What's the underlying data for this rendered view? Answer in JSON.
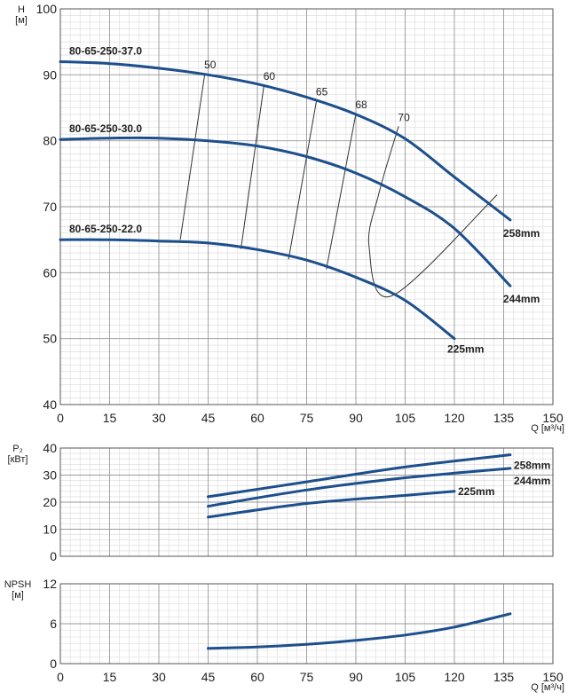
{
  "chart_data": [
    {
      "name": "head",
      "type": "line",
      "ylabel": [
        "H",
        "[м]"
      ],
      "xlabel": "Q [м³/ч]",
      "xlim": [
        0,
        150
      ],
      "ylim": [
        40,
        100
      ],
      "xticks": [
        0,
        15,
        30,
        45,
        60,
        75,
        90,
        105,
        120,
        135,
        150
      ],
      "yticks": [
        40,
        50,
        60,
        70,
        80,
        90,
        100
      ],
      "grid": true,
      "series": [
        {
          "name": "80-65-250-37.0",
          "end_label": "258mm",
          "color": "#1c4f8c",
          "x": [
            0,
            15,
            30,
            45,
            60,
            75,
            90,
            105,
            120,
            137
          ],
          "y": [
            92,
            91.7,
            91,
            90,
            88.6,
            86.6,
            84,
            80.3,
            74.5,
            68
          ]
        },
        {
          "name": "80-65-250-30.0",
          "end_label": "244mm",
          "color": "#1c4f8c",
          "x": [
            0,
            15,
            30,
            45,
            60,
            75,
            90,
            105,
            120,
            137
          ],
          "y": [
            80.2,
            80.4,
            80.4,
            80,
            79.2,
            77.6,
            75.1,
            71.5,
            66.7,
            58
          ]
        },
        {
          "name": "80-65-250-22.0",
          "end_label": "225mm",
          "color": "#1c4f8c",
          "x": [
            0,
            15,
            30,
            45,
            60,
            75,
            90,
            105,
            120
          ],
          "y": [
            65,
            65,
            64.8,
            64.5,
            63.5,
            61.9,
            59.3,
            55.8,
            50
          ]
        }
      ],
      "efficiency_lines": [
        {
          "label": "50",
          "x": [
            44,
            36.5
          ],
          "y": [
            90.2,
            65
          ]
        },
        {
          "label": "60",
          "x": [
            62,
            55
          ],
          "y": [
            88.4,
            63.6
          ]
        },
        {
          "label": "65",
          "x": [
            78,
            69.5
          ],
          "y": [
            86.1,
            62
          ]
        },
        {
          "label": "68",
          "x": [
            90,
            81
          ],
          "y": [
            84.1,
            60.5
          ]
        },
        {
          "label": "70",
          "x": [
            103,
            97,
            94,
            101,
            133
          ],
          "y": [
            82.2,
            72,
            64,
            56.5,
            71.8
          ]
        }
      ]
    },
    {
      "name": "power",
      "type": "line",
      "ylabel": [
        "P₂",
        "[кВт]"
      ],
      "xlim": [
        0,
        150
      ],
      "ylim": [
        0,
        40
      ],
      "yticks": [
        0,
        10,
        20,
        30,
        40
      ],
      "xticks": [
        0,
        15,
        30,
        45,
        60,
        75,
        90,
        105,
        120,
        135,
        150
      ],
      "grid": true,
      "series": [
        {
          "name": "258mm",
          "x": [
            45,
            75,
            105,
            137
          ],
          "y": [
            22,
            27.5,
            33,
            37.5
          ]
        },
        {
          "name": "244mm",
          "x": [
            45,
            75,
            105,
            137
          ],
          "y": [
            18.5,
            24.5,
            29,
            32.5
          ]
        },
        {
          "name": "225mm",
          "x": [
            45,
            75,
            105,
            120
          ],
          "y": [
            14.5,
            19.5,
            22.5,
            24
          ]
        }
      ]
    },
    {
      "name": "npsh",
      "type": "line",
      "ylabel": [
        "NPSH",
        "[м]"
      ],
      "xlabel": "Q [м³/ч]",
      "xlim": [
        0,
        150
      ],
      "ylim": [
        0,
        12
      ],
      "yticks": [
        0,
        6,
        12
      ],
      "xticks": [
        0,
        15,
        30,
        45,
        60,
        75,
        90,
        105,
        120,
        135,
        150
      ],
      "grid": true,
      "series": [
        {
          "name": "",
          "x": [
            45,
            60,
            75,
            90,
            105,
            120,
            137
          ],
          "y": [
            2.3,
            2.5,
            2.9,
            3.5,
            4.3,
            5.5,
            7.5
          ]
        }
      ]
    }
  ]
}
